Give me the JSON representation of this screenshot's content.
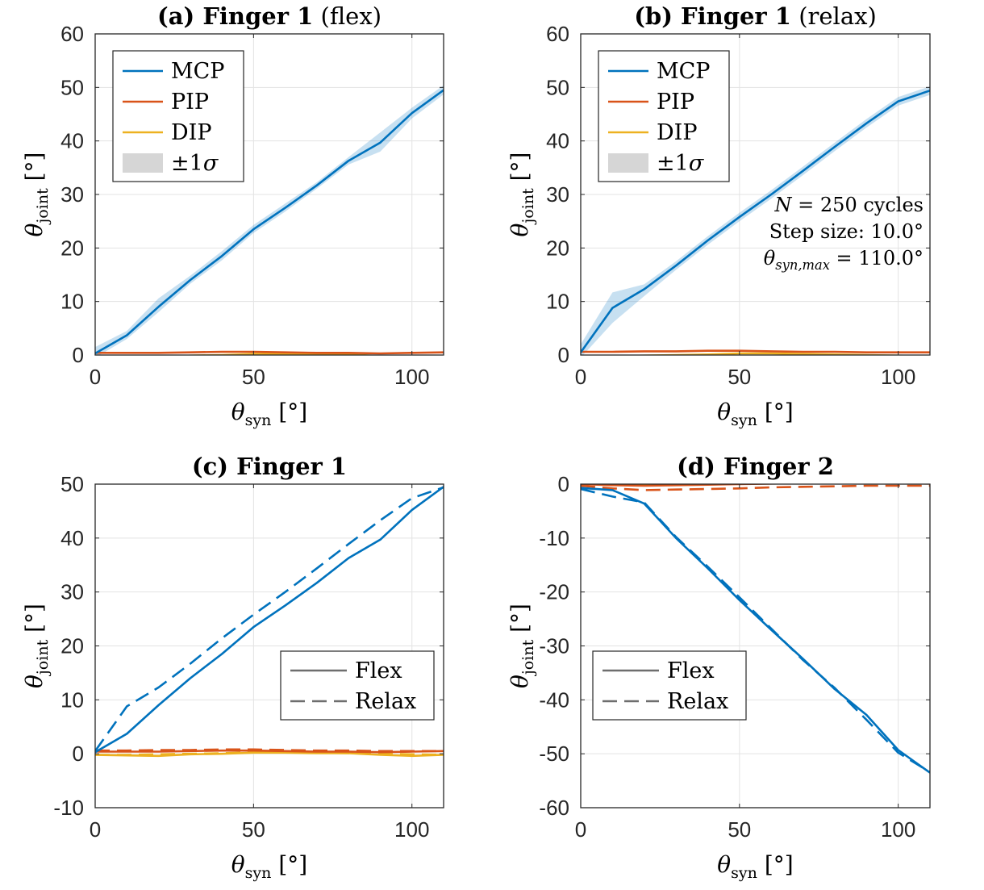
{
  "chart_data": [
    {
      "type": "line",
      "title_bold": "(a) Finger 1",
      "title_rest": "(flex)",
      "xlabel": "θ_syn [°]",
      "ylabel": "θ_joint [°]",
      "xlim": [
        0,
        110
      ],
      "ylim": [
        0,
        60
      ],
      "xticks": [
        0,
        50,
        100
      ],
      "yticks": [
        0,
        10,
        20,
        30,
        40,
        50,
        60
      ],
      "grid": true,
      "legend": {
        "placement": "top-left",
        "entries": [
          "MCP",
          "PIP",
          "DIP",
          "±1σ"
        ]
      },
      "x": [
        0,
        10,
        20,
        30,
        40,
        50,
        60,
        70,
        80,
        90,
        100,
        110
      ],
      "series": [
        {
          "name": "MCP",
          "color": "#0072BD",
          "style": "solid",
          "values": [
            0.3,
            3.7,
            9.0,
            14.0,
            18.5,
            23.5,
            27.5,
            31.7,
            36.3,
            39.7,
            45.2,
            49.5
          ],
          "band_lower": [
            -0.5,
            3.0,
            8.0,
            13.3,
            17.7,
            22.8,
            26.8,
            31.1,
            35.6,
            38.0,
            44.2,
            48.7
          ],
          "band_upper": [
            1.5,
            4.5,
            10.6,
            14.8,
            19.4,
            24.3,
            28.3,
            32.3,
            37.0,
            41.6,
            46.2,
            50.4
          ]
        },
        {
          "name": "PIP",
          "color": "#D95319",
          "style": "solid",
          "values": [
            0.4,
            0.4,
            0.4,
            0.5,
            0.6,
            0.6,
            0.5,
            0.4,
            0.4,
            0.3,
            0.4,
            0.5
          ]
        },
        {
          "name": "DIP",
          "color": "#EDB120",
          "style": "solid",
          "values": [
            -0.2,
            -0.3,
            -0.4,
            -0.1,
            0.0,
            0.2,
            0.2,
            0.1,
            0.1,
            -0.2,
            -0.4,
            -0.2
          ]
        }
      ]
    },
    {
      "type": "line",
      "title_bold": "(b) Finger 1",
      "title_rest": "(relax)",
      "xlabel": "θ_syn [°]",
      "ylabel": "θ_joint [°]",
      "xlim": [
        0,
        110
      ],
      "ylim": [
        0,
        60
      ],
      "xticks": [
        0,
        50,
        100
      ],
      "yticks": [
        0,
        10,
        20,
        30,
        40,
        50,
        60
      ],
      "grid": true,
      "legend": {
        "placement": "top-left",
        "entries": [
          "MCP",
          "PIP",
          "DIP",
          "±1σ"
        ]
      },
      "annotations": [
        "N = 250 cycles",
        "Step size: 10.0°",
        "θ_syn,max = 110.0°"
      ],
      "x": [
        0,
        10,
        20,
        30,
        40,
        50,
        60,
        70,
        80,
        90,
        100,
        110
      ],
      "series": [
        {
          "name": "MCP",
          "color": "#0072BD",
          "style": "solid",
          "values": [
            0.5,
            8.8,
            12.3,
            16.7,
            21.4,
            25.8,
            30.0,
            34.4,
            38.9,
            43.3,
            47.4,
            49.4
          ],
          "band_lower": [
            -0.5,
            6.0,
            11.0,
            15.9,
            20.6,
            25.0,
            29.2,
            33.6,
            38.1,
            42.5,
            46.6,
            48.6
          ],
          "band_upper": [
            2.0,
            11.7,
            13.2,
            17.5,
            22.2,
            26.6,
            30.8,
            35.2,
            39.7,
            44.1,
            48.2,
            50.2
          ]
        },
        {
          "name": "PIP",
          "color": "#D95319",
          "style": "solid",
          "values": [
            0.6,
            0.6,
            0.7,
            0.7,
            0.8,
            0.8,
            0.7,
            0.6,
            0.6,
            0.5,
            0.5,
            0.5
          ]
        },
        {
          "name": "DIP",
          "color": "#EDB120",
          "style": "solid",
          "values": [
            -0.2,
            -0.2,
            -0.1,
            0.0,
            0.1,
            0.3,
            0.3,
            0.2,
            0.1,
            0.0,
            -0.1,
            -0.2
          ]
        }
      ]
    },
    {
      "type": "line",
      "title_bold": "(c) Finger 1",
      "title_rest": "",
      "xlabel": "θ_syn [°]",
      "ylabel": "θ_joint [°]",
      "xlim": [
        0,
        110
      ],
      "ylim": [
        -10,
        50
      ],
      "xticks": [
        0,
        50,
        100
      ],
      "yticks": [
        -10,
        0,
        10,
        20,
        30,
        40,
        50
      ],
      "grid": true,
      "legend": {
        "placement": "center-right",
        "entries": [
          "Flex",
          "Relax"
        ]
      },
      "x": [
        0,
        10,
        20,
        30,
        40,
        50,
        60,
        70,
        80,
        90,
        100,
        110
      ],
      "series": [
        {
          "name": "MCP flex",
          "color": "#0072BD",
          "style": "solid",
          "values": [
            0.3,
            3.7,
            9.0,
            14.0,
            18.5,
            23.5,
            27.5,
            31.7,
            36.3,
            39.7,
            45.2,
            49.5
          ]
        },
        {
          "name": "MCP relax",
          "color": "#0072BD",
          "style": "dashed",
          "values": [
            0.5,
            8.8,
            12.3,
            16.7,
            21.4,
            25.8,
            30.0,
            34.4,
            38.9,
            43.3,
            47.4,
            49.4
          ]
        },
        {
          "name": "PIP flex",
          "color": "#D95319",
          "style": "solid",
          "values": [
            0.4,
            0.4,
            0.4,
            0.5,
            0.6,
            0.6,
            0.5,
            0.4,
            0.4,
            0.3,
            0.4,
            0.5
          ]
        },
        {
          "name": "PIP relax",
          "color": "#D95319",
          "style": "dashed",
          "values": [
            0.6,
            0.6,
            0.7,
            0.7,
            0.8,
            0.8,
            0.7,
            0.6,
            0.6,
            0.5,
            0.5,
            0.5
          ]
        },
        {
          "name": "DIP flex",
          "color": "#EDB120",
          "style": "solid",
          "values": [
            -0.2,
            -0.3,
            -0.4,
            -0.1,
            0.0,
            0.2,
            0.2,
            0.1,
            0.1,
            -0.2,
            -0.4,
            -0.2
          ]
        },
        {
          "name": "DIP relax",
          "color": "#EDB120",
          "style": "dashed",
          "values": [
            -0.2,
            -0.2,
            -0.1,
            0.0,
            0.1,
            0.3,
            0.3,
            0.2,
            0.1,
            0.0,
            -0.1,
            -0.2
          ]
        }
      ]
    },
    {
      "type": "line",
      "title_bold": "(d) Finger 2",
      "title_rest": "",
      "xlabel": "θ_syn [°]",
      "ylabel": "θ_joint [°]",
      "xlim": [
        0,
        110
      ],
      "ylim": [
        -60,
        0
      ],
      "xticks": [
        0,
        50,
        100
      ],
      "yticks": [
        -60,
        -50,
        -40,
        -30,
        -20,
        -10,
        0
      ],
      "grid": true,
      "legend": {
        "placement": "bottom-left",
        "entries": [
          "Flex",
          "Relax"
        ]
      },
      "x": [
        0,
        10,
        20,
        30,
        40,
        50,
        60,
        70,
        80,
        90,
        100,
        110
      ],
      "series": [
        {
          "name": "MCP flex",
          "color": "#0072BD",
          "style": "solid",
          "values": [
            -0.7,
            -1.1,
            -3.6,
            -10.0,
            -15.6,
            -21.5,
            -27.0,
            -32.4,
            -38.0,
            -42.8,
            -49.3,
            -53.5
          ]
        },
        {
          "name": "MCP relax",
          "color": "#0072BD",
          "style": "dashed",
          "values": [
            -0.9,
            -2.3,
            -3.4,
            -9.8,
            -15.3,
            -21.0,
            -26.8,
            -32.6,
            -37.8,
            -43.7,
            -49.8,
            -53.4
          ]
        },
        {
          "name": "PIP flex",
          "color": "#D95319",
          "style": "solid",
          "values": [
            0.0,
            -0.2,
            -0.3,
            -0.2,
            -0.1,
            0.0,
            0.1,
            0.2,
            0.3,
            0.3,
            0.2,
            0.1
          ]
        },
        {
          "name": "PIP relax",
          "color": "#D95319",
          "style": "dashed",
          "values": [
            -0.3,
            -0.8,
            -1.1,
            -1.0,
            -0.9,
            -0.8,
            -0.6,
            -0.5,
            -0.4,
            -0.3,
            -0.3,
            -0.3
          ]
        },
        {
          "name": "DIP flex",
          "color": "#EDB120",
          "style": "solid",
          "values": [
            0.2,
            0.0,
            -0.1,
            0.0,
            0.1,
            0.2,
            0.2,
            0.3,
            0.4,
            0.4,
            0.3,
            0.2
          ]
        },
        {
          "name": "DIP relax",
          "color": "#EDB120",
          "style": "dashed",
          "values": [
            0.3,
            0.1,
            0.0,
            0.1,
            0.2,
            0.3,
            0.3,
            0.4,
            0.5,
            0.5,
            0.4,
            0.3
          ]
        }
      ]
    }
  ]
}
